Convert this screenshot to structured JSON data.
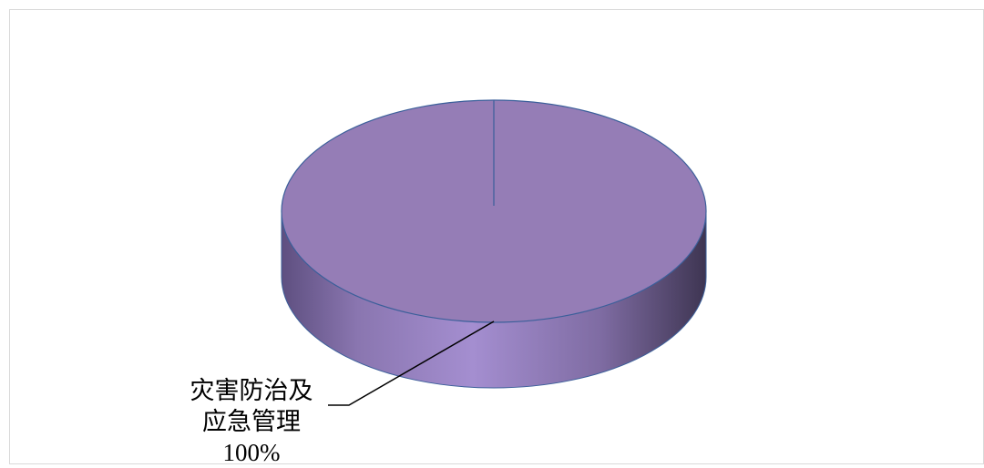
{
  "chart_data": {
    "type": "pie",
    "categories": [
      "灾害防治及应急管理"
    ],
    "values": [
      100
    ],
    "value_labels": [
      "100%"
    ],
    "colors": [
      "#957db6"
    ]
  }
}
